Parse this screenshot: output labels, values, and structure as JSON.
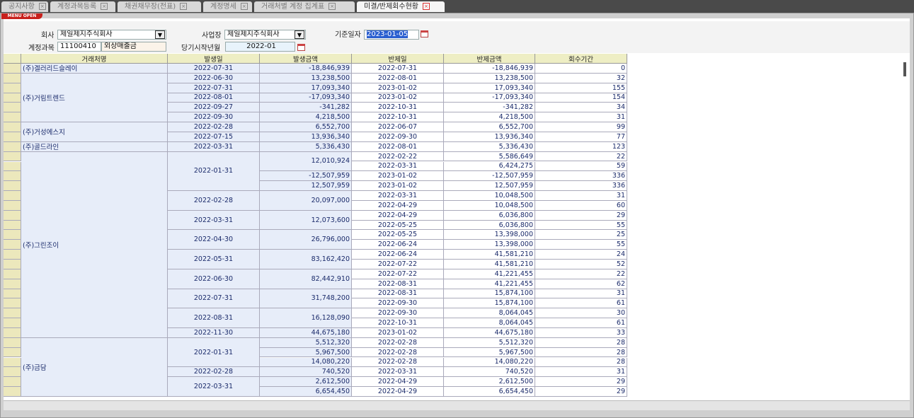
{
  "tabs": [
    {
      "label": "공지사항"
    },
    {
      "label": "계정과목등록"
    },
    {
      "label": "채권채무장(전표)"
    },
    {
      "label": "계정명세"
    },
    {
      "label": "거래처별 계정 집계표"
    },
    {
      "label": "미결/반제회수현황"
    }
  ],
  "menu_button": "MENU OPEN",
  "form": {
    "company_label": "회사",
    "company": "제일제지주식회사",
    "site_label": "사업장",
    "site": "제일제지주식회사",
    "base_date_label": "기준일자",
    "base_date": "2023-01-05",
    "account_label": "계정과목",
    "account_code": "11100410",
    "account_name": "외상매출금",
    "start_month_label": "당기시작년월",
    "start_month": "2022-01"
  },
  "table": {
    "columns": [
      "거래처명",
      "발생일",
      "발생금액",
      "반제일",
      "반제금액",
      "회수기간"
    ],
    "clients": [
      {
        "name": "(주)겔러리드슬레이",
        "occurrences": [
          {
            "date": "2022-07-31",
            "amounts": [
              {
                "amount": "-18,846,939",
                "repayments": [
                  {
                    "date": "2022-07-31",
                    "amount": "-18,846,939",
                    "days": 0
                  }
                ]
              }
            ]
          }
        ]
      },
      {
        "name": "(주)거림트렌드",
        "occurrences": [
          {
            "date": "2022-06-30",
            "amounts": [
              {
                "amount": "13,238,500",
                "repayments": [
                  {
                    "date": "2022-08-01",
                    "amount": "13,238,500",
                    "days": 32
                  }
                ]
              }
            ]
          },
          {
            "date": "2022-07-31",
            "amounts": [
              {
                "amount": "17,093,340",
                "repayments": [
                  {
                    "date": "2023-01-02",
                    "amount": "17,093,340",
                    "days": 155
                  }
                ]
              }
            ]
          },
          {
            "date": "2022-08-01",
            "amounts": [
              {
                "amount": "-17,093,340",
                "repayments": [
                  {
                    "date": "2023-01-02",
                    "amount": "-17,093,340",
                    "days": 154
                  }
                ]
              }
            ]
          },
          {
            "date": "2022-09-27",
            "amounts": [
              {
                "amount": "-341,282",
                "repayments": [
                  {
                    "date": "2022-10-31",
                    "amount": "-341,282",
                    "days": 34
                  }
                ]
              }
            ]
          },
          {
            "date": "2022-09-30",
            "amounts": [
              {
                "amount": "4,218,500",
                "repayments": [
                  {
                    "date": "2022-10-31",
                    "amount": "4,218,500",
                    "days": 31
                  }
                ]
              }
            ]
          }
        ]
      },
      {
        "name": "(주)거성에스지",
        "occurrences": [
          {
            "date": "2022-02-28",
            "amounts": [
              {
                "amount": "6,552,700",
                "repayments": [
                  {
                    "date": "2022-06-07",
                    "amount": "6,552,700",
                    "days": 99
                  }
                ]
              }
            ]
          },
          {
            "date": "2022-07-15",
            "amounts": [
              {
                "amount": "13,936,340",
                "repayments": [
                  {
                    "date": "2022-09-30",
                    "amount": "13,936,340",
                    "days": 77
                  }
                ]
              }
            ]
          }
        ]
      },
      {
        "name": "(주)골드라인",
        "occurrences": [
          {
            "date": "2022-03-31",
            "amounts": [
              {
                "amount": "5,336,430",
                "repayments": [
                  {
                    "date": "2022-08-01",
                    "amount": "5,336,430",
                    "days": 123
                  }
                ]
              }
            ]
          }
        ]
      },
      {
        "name": "(주)그린조이",
        "occurrences": [
          {
            "date": "2022-01-31",
            "amounts": [
              {
                "amount": "12,010,924",
                "repayments": [
                  {
                    "date": "2022-02-22",
                    "amount": "5,586,649",
                    "days": 22
                  },
                  {
                    "date": "2022-03-31",
                    "amount": "6,424,275",
                    "days": 59
                  }
                ]
              },
              {
                "amount": "-12,507,959",
                "repayments": [
                  {
                    "date": "2023-01-02",
                    "amount": "-12,507,959",
                    "days": 336
                  }
                ]
              },
              {
                "amount": "12,507,959",
                "repayments": [
                  {
                    "date": "2023-01-02",
                    "amount": "12,507,959",
                    "days": 336
                  }
                ]
              }
            ]
          },
          {
            "date": "2022-02-28",
            "amounts": [
              {
                "amount": "20,097,000",
                "repayments": [
                  {
                    "date": "2022-03-31",
                    "amount": "10,048,500",
                    "days": 31
                  },
                  {
                    "date": "2022-04-29",
                    "amount": "10,048,500",
                    "days": 60
                  }
                ]
              }
            ]
          },
          {
            "date": "2022-03-31",
            "amounts": [
              {
                "amount": "12,073,600",
                "repayments": [
                  {
                    "date": "2022-04-29",
                    "amount": "6,036,800",
                    "days": 29
                  },
                  {
                    "date": "2022-05-25",
                    "amount": "6,036,800",
                    "days": 55
                  }
                ]
              }
            ]
          },
          {
            "date": "2022-04-30",
            "amounts": [
              {
                "amount": "26,796,000",
                "repayments": [
                  {
                    "date": "2022-05-25",
                    "amount": "13,398,000",
                    "days": 25
                  },
                  {
                    "date": "2022-06-24",
                    "amount": "13,398,000",
                    "days": 55
                  }
                ]
              }
            ]
          },
          {
            "date": "2022-05-31",
            "amounts": [
              {
                "amount": "83,162,420",
                "repayments": [
                  {
                    "date": "2022-06-24",
                    "amount": "41,581,210",
                    "days": 24
                  },
                  {
                    "date": "2022-07-22",
                    "amount": "41,581,210",
                    "days": 52
                  }
                ]
              }
            ]
          },
          {
            "date": "2022-06-30",
            "amounts": [
              {
                "amount": "82,442,910",
                "repayments": [
                  {
                    "date": "2022-07-22",
                    "amount": "41,221,455",
                    "days": 22
                  },
                  {
                    "date": "2022-08-31",
                    "amount": "41,221,455",
                    "days": 62
                  }
                ]
              }
            ]
          },
          {
            "date": "2022-07-31",
            "amounts": [
              {
                "amount": "31,748,200",
                "repayments": [
                  {
                    "date": "2022-08-31",
                    "amount": "15,874,100",
                    "days": 31
                  },
                  {
                    "date": "2022-09-30",
                    "amount": "15,874,100",
                    "days": 61
                  }
                ]
              }
            ]
          },
          {
            "date": "2022-08-31",
            "amounts": [
              {
                "amount": "16,128,090",
                "repayments": [
                  {
                    "date": "2022-09-30",
                    "amount": "8,064,045",
                    "days": 30
                  },
                  {
                    "date": "2022-10-31",
                    "amount": "8,064,045",
                    "days": 61
                  }
                ]
              }
            ]
          },
          {
            "date": "2022-11-30",
            "amounts": [
              {
                "amount": "44,675,180",
                "repayments": [
                  {
                    "date": "2023-01-02",
                    "amount": "44,675,180",
                    "days": 33
                  }
                ]
              }
            ]
          }
        ]
      },
      {
        "name": "(주)금담",
        "occurrences": [
          {
            "date": "2022-01-31",
            "amounts": [
              {
                "amount": "5,512,320",
                "repayments": [
                  {
                    "date": "2022-02-28",
                    "amount": "5,512,320",
                    "days": 28
                  }
                ]
              },
              {
                "amount": "5,967,500",
                "repayments": [
                  {
                    "date": "2022-02-28",
                    "amount": "5,967,500",
                    "days": 28
                  }
                ]
              },
              {
                "amount": "14,080,220",
                "repayments": [
                  {
                    "date": "2022-02-28",
                    "amount": "14,080,220",
                    "days": 28
                  }
                ]
              }
            ]
          },
          {
            "date": "2022-02-28",
            "amounts": [
              {
                "amount": "740,520",
                "repayments": [
                  {
                    "date": "2022-03-31",
                    "amount": "740,520",
                    "days": 31
                  }
                ]
              }
            ]
          },
          {
            "date": "2022-03-31",
            "amounts": [
              {
                "amount": "2,612,500",
                "repayments": [
                  {
                    "date": "2022-04-29",
                    "amount": "2,612,500",
                    "days": 29
                  }
                ]
              },
              {
                "amount": "6,654,450",
                "repayments": [
                  {
                    "date": "2022-04-29",
                    "amount": "6,654,450",
                    "days": 29
                  }
                ]
              }
            ]
          }
        ]
      }
    ]
  }
}
